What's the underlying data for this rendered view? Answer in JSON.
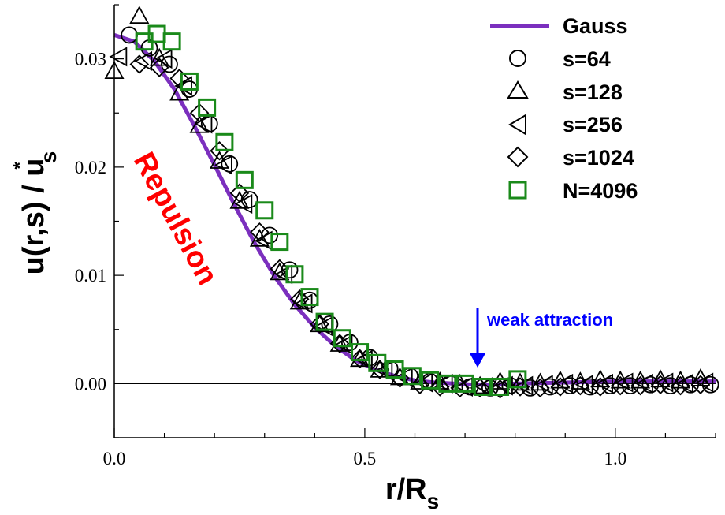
{
  "chart_data": {
    "type": "scatter",
    "xlabel": "r/R",
    "xlabel_sub": "s",
    "ylabel": "u(r,s) / u",
    "ylabel_sup": "*",
    "ylabel_sub": "s",
    "xlim": [
      0,
      1.2
    ],
    "ylim": [
      -0.005,
      0.035
    ],
    "xticks": [
      0.0,
      0.5,
      1.0
    ],
    "xtick_labels": [
      "0.0",
      "0.5",
      "1.0"
    ],
    "yticks": [
      0.0,
      0.01,
      0.02,
      0.03
    ],
    "ytick_labels": [
      "0.00",
      "0.01",
      "0.02",
      "0.03"
    ],
    "zero_line": true,
    "legend_position": "top-right",
    "legend": [
      {
        "label": "Gauss",
        "marker": "line",
        "color": "#7b2fbe"
      },
      {
        "label": "s=64",
        "marker": "circle",
        "color": "#000000"
      },
      {
        "label": "s=128",
        "marker": "triangle-up",
        "color": "#000000"
      },
      {
        "label": "s=256",
        "marker": "triangle-left",
        "color": "#000000"
      },
      {
        "label": "s=1024",
        "marker": "diamond",
        "color": "#000000"
      },
      {
        "label": "N=4096",
        "marker": "square",
        "color": "#1a8a1a"
      }
    ],
    "annotations": [
      {
        "text": "Repulsion",
        "color": "#ff0000"
      },
      {
        "text": "weak attraction",
        "color": "#0000ff"
      }
    ],
    "series": [
      {
        "name": "Gauss",
        "kind": "line",
        "color": "#7b2fbe",
        "x": [
          0.0,
          0.04,
          0.08,
          0.12,
          0.16,
          0.2,
          0.24,
          0.28,
          0.32,
          0.36,
          0.4,
          0.44,
          0.48,
          0.52,
          0.56,
          0.6,
          0.64,
          0.68,
          0.72,
          0.76,
          0.8,
          0.9,
          1.0,
          1.1,
          1.2
        ],
        "y": [
          0.0322,
          0.0316,
          0.0298,
          0.0272,
          0.0238,
          0.0202,
          0.0165,
          0.013,
          0.0099,
          0.0073,
          0.0052,
          0.0035,
          0.0022,
          0.0013,
          0.0007,
          0.0003,
          0.0001,
          0.0,
          -0.0001,
          -0.0001,
          0.0,
          0.0001,
          0.0002,
          0.0002,
          0.0002
        ]
      },
      {
        "name": "s=64",
        "marker": "circle",
        "color": "#000000",
        "x": [
          0.03,
          0.07,
          0.11,
          0.15,
          0.19,
          0.23,
          0.27,
          0.31,
          0.35,
          0.39,
          0.43,
          0.47,
          0.51,
          0.55,
          0.59,
          0.63,
          0.67,
          0.71,
          0.75,
          0.79,
          0.83,
          0.87,
          0.91,
          0.95,
          0.99,
          1.03,
          1.07,
          1.11,
          1.15,
          1.19
        ],
        "y": [
          0.0322,
          0.031,
          0.0295,
          0.0272,
          0.024,
          0.0203,
          0.017,
          0.0137,
          0.0105,
          0.0077,
          0.0055,
          0.0038,
          0.0024,
          0.0014,
          0.0007,
          0.0002,
          0.0,
          -0.0003,
          -0.0004,
          -0.0002,
          -0.0004,
          -0.0003,
          -0.0002,
          -0.0003,
          -0.0002,
          -0.0002,
          -0.0001,
          -0.0002,
          -0.0001,
          -0.0001
        ]
      },
      {
        "name": "s=128",
        "marker": "triangle-up",
        "color": "#000000",
        "x": [
          0.0,
          0.05,
          0.09,
          0.13,
          0.17,
          0.21,
          0.25,
          0.29,
          0.33,
          0.37,
          0.41,
          0.45,
          0.49,
          0.53,
          0.57,
          0.61,
          0.65,
          0.69,
          0.73,
          0.77,
          0.81,
          0.85,
          0.89,
          0.93,
          0.97,
          1.01,
          1.05,
          1.09,
          1.13,
          1.17
        ],
        "y": [
          0.0288,
          0.0339,
          0.03,
          0.0268,
          0.0238,
          0.0205,
          0.0168,
          0.0133,
          0.0102,
          0.0075,
          0.0054,
          0.0036,
          0.0022,
          0.0012,
          0.0005,
          0.0001,
          0.0001,
          -0.0001,
          -0.0003,
          0.0001,
          0.0,
          0.0,
          0.0002,
          0.0001,
          0.0003,
          0.0002,
          0.0002,
          0.0003,
          0.0002,
          0.0004
        ]
      },
      {
        "name": "s=256",
        "marker": "triangle-left",
        "color": "#000000",
        "x": [
          0.01,
          0.06,
          0.1,
          0.14,
          0.18,
          0.22,
          0.26,
          0.3,
          0.34,
          0.38,
          0.42,
          0.46,
          0.5,
          0.54,
          0.58,
          0.62,
          0.66,
          0.7,
          0.74,
          0.78,
          0.82,
          0.86,
          0.9,
          0.94,
          0.98,
          1.02,
          1.06,
          1.1,
          1.14,
          1.18
        ],
        "y": [
          0.0302,
          0.0298,
          0.03,
          0.0275,
          0.024,
          0.0202,
          0.0166,
          0.0132,
          0.0101,
          0.0074,
          0.0053,
          0.0036,
          0.0022,
          0.0012,
          0.0006,
          0.0001,
          0.0,
          -0.0003,
          -0.0003,
          -0.0002,
          -0.0002,
          -0.0001,
          0.0,
          -0.0001,
          0.0,
          0.0001,
          0.0,
          0.0001,
          0.0,
          0.0001
        ]
      },
      {
        "name": "s=1024",
        "marker": "diamond",
        "color": "#000000",
        "x": [
          0.05,
          0.09,
          0.13,
          0.17,
          0.21,
          0.25,
          0.29,
          0.33,
          0.37,
          0.41,
          0.45,
          0.49,
          0.53,
          0.57,
          0.61,
          0.65,
          0.69,
          0.73,
          0.77,
          0.81,
          0.85,
          0.89,
          0.93,
          0.97,
          1.01,
          1.05,
          1.09,
          1.13,
          1.17
        ],
        "y": [
          0.0295,
          0.0292,
          0.0282,
          0.025,
          0.0215,
          0.0176,
          0.014,
          0.0106,
          0.0078,
          0.0055,
          0.0037,
          0.0023,
          0.0013,
          0.0005,
          -0.0001,
          -0.0003,
          -0.0004,
          -0.0004,
          -0.0005,
          -0.0003,
          -0.0004,
          -0.0003,
          -0.0002,
          -0.0003,
          -0.0002,
          -0.0002,
          -0.0001,
          -0.0002,
          -0.0001
        ]
      },
      {
        "name": "N=4096",
        "marker": "square",
        "color": "#1a8a1a",
        "x": [
          0.06,
          0.085,
          0.115,
          0.15,
          0.185,
          0.22,
          0.26,
          0.3,
          0.33,
          0.36,
          0.39,
          0.42,
          0.455,
          0.49,
          0.525,
          0.56,
          0.595,
          0.63,
          0.665,
          0.7,
          0.735,
          0.77,
          0.805
        ],
        "y": [
          0.0316,
          0.0323,
          0.0316,
          0.0279,
          0.0255,
          0.0223,
          0.0188,
          0.016,
          0.0131,
          0.0101,
          0.008,
          0.0057,
          0.0042,
          0.0029,
          0.0019,
          0.0013,
          0.0007,
          0.0003,
          0.0,
          0.0,
          -0.0003,
          -0.0003,
          0.0004
        ]
      }
    ]
  }
}
